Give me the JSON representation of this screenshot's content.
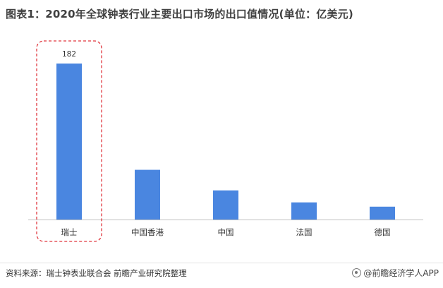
{
  "title": "图表1：2020年全球钟表行业主要出口市场的出口值情况(单位：亿美元)",
  "source": "资料来源：瑞士钟表业联合会 前瞻产业研究院整理",
  "brand": "@前瞻经济学人APP",
  "colors": {
    "bar": "#4a86e0",
    "highlight": "#e0373e",
    "axis": "#bfbfbf"
  },
  "chart_data": {
    "type": "bar",
    "title": "图表1：2020年全球钟表行业主要出口市场的出口值情况(单位：亿美元)",
    "xlabel": "",
    "ylabel": "",
    "categories": [
      "瑞士",
      "中国香港",
      "中国",
      "法国",
      "德国"
    ],
    "values": [
      182,
      58,
      34,
      20,
      15
    ],
    "data_labels": [
      "182",
      "",
      "",
      "",
      ""
    ],
    "highlight_index": 0,
    "ylim": [
      0,
      182
    ],
    "grid": false,
    "legend": "none"
  }
}
